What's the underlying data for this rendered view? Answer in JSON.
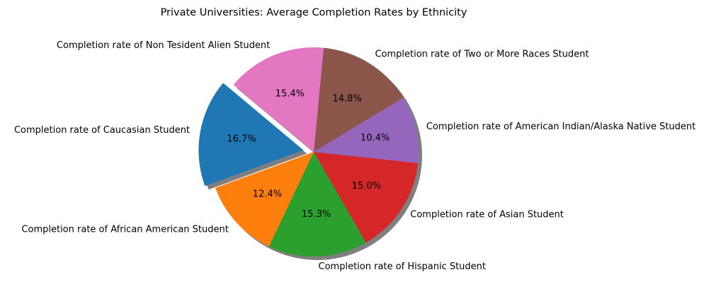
{
  "chart_data": {
    "type": "pie",
    "title": "Private Universities: Average Completion Rates by Ethnicity",
    "shadow": true,
    "start_angle_deg": 140,
    "direction": "counterclockwise",
    "exploded_slice": "Completion rate of Caucasian Student",
    "slices": [
      {
        "label": "Completion rate of Caucasian Student",
        "value": 16.7,
        "pct_label": "16.7%",
        "color": "#1f77b4",
        "explode": 0.1
      },
      {
        "label": "Completion rate of African American Student",
        "value": 12.4,
        "pct_label": "12.4%",
        "color": "#ff7f0e",
        "explode": 0
      },
      {
        "label": "Completion rate of Hispanic Student",
        "value": 15.3,
        "pct_label": "15.3%",
        "color": "#2ca02c",
        "explode": 0
      },
      {
        "label": "Completion rate of Asian Student",
        "value": 15.0,
        "pct_label": "15.0%",
        "color": "#d62728",
        "explode": 0
      },
      {
        "label": "Completion rate of American Indian/Alaska Native Student",
        "value": 10.4,
        "pct_label": "10.4%",
        "color": "#9467bd",
        "explode": 0
      },
      {
        "label": "Completion rate of Two or More Races Student",
        "value": 14.8,
        "pct_label": "14.8%",
        "color": "#8c564b",
        "explode": 0
      },
      {
        "label": "Completion rate of Non Tesident Alien Student",
        "value": 15.4,
        "pct_label": "15.4%",
        "color": "#e377c2",
        "explode": 0
      }
    ]
  }
}
